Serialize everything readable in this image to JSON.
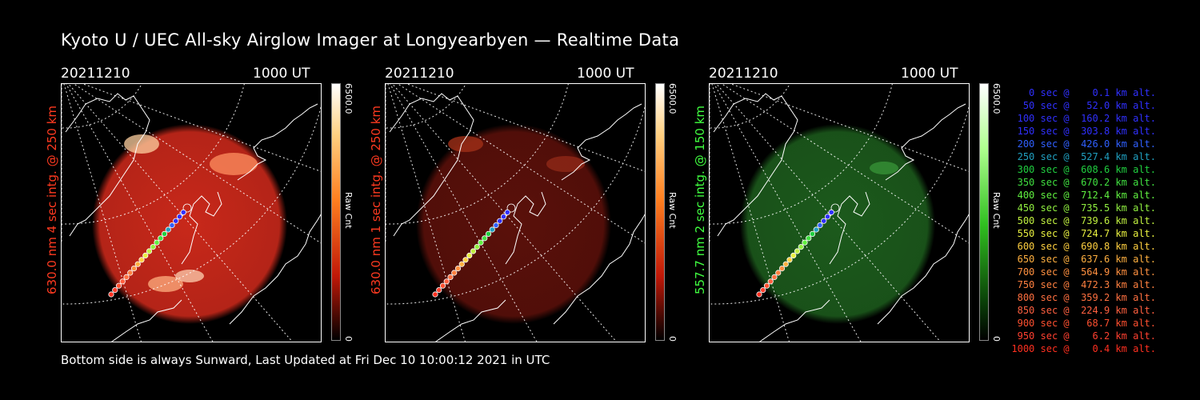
{
  "title": "Kyoto U / UEC All-sky Airglow Imager at Longyearbyen — Realtime Data",
  "panels": [
    {
      "date": "20211210",
      "time": "1000 UT",
      "ylabel": "630.0 nm 4 sec intg. @ 250 km",
      "ylabel_color": "#ff3a20",
      "scale_max": "6500.0",
      "scale_min": "0",
      "unit": "Raw Cnt",
      "image_tint": "#c8281a"
    },
    {
      "date": "20211210",
      "time": "1000 UT",
      "ylabel": "630.0 nm 1 sec intg. @ 250 km",
      "ylabel_color": "#ff3a20",
      "scale_max": "6500.0",
      "scale_min": "0",
      "unit": "Raw Cnt",
      "image_tint": "#5a100a"
    },
    {
      "date": "20211210",
      "time": "1000 UT",
      "ylabel": "557.7 nm 2 sec intg. @ 150 km",
      "ylabel_color": "#40ff40",
      "scale_max": "6500.0",
      "scale_min": "0",
      "unit": "Raw Cnt",
      "image_tint": "#1c5a1c"
    }
  ],
  "footer": "Bottom side is always Sunward, Last Updated at Fri Dec 10 10:00:12 2021 in UTC",
  "legend": [
    {
      "text": "   0 sec @    0.1 km alt.",
      "color": "#3030ff"
    },
    {
      "text": "  50 sec @   52.0 km alt.",
      "color": "#3030ff"
    },
    {
      "text": " 100 sec @  160.2 km alt.",
      "color": "#3030ff"
    },
    {
      "text": " 150 sec @  303.8 km alt.",
      "color": "#3030ff"
    },
    {
      "text": " 200 sec @  426.0 km alt.",
      "color": "#3060ff"
    },
    {
      "text": " 250 sec @  527.4 km alt.",
      "color": "#20a0c0"
    },
    {
      "text": " 300 sec @  608.6 km alt.",
      "color": "#20d040"
    },
    {
      "text": " 350 sec @  670.2 km alt.",
      "color": "#40e040"
    },
    {
      "text": " 400 sec @  712.4 km alt.",
      "color": "#60f040"
    },
    {
      "text": " 450 sec @  735.5 km alt.",
      "color": "#90f040"
    },
    {
      "text": " 500 sec @  739.6 km alt.",
      "color": "#c0f040"
    },
    {
      "text": " 550 sec @  724.7 km alt.",
      "color": "#e8f040"
    },
    {
      "text": " 600 sec @  690.8 km alt.",
      "color": "#ffd040"
    },
    {
      "text": " 650 sec @  637.6 km alt.",
      "color": "#ffb040"
    },
    {
      "text": " 700 sec @  564.9 km alt.",
      "color": "#ff9040"
    },
    {
      "text": " 750 sec @  472.3 km alt.",
      "color": "#ff8040"
    },
    {
      "text": " 800 sec @  359.2 km alt.",
      "color": "#ff7040"
    },
    {
      "text": " 850 sec @  224.9 km alt.",
      "color": "#ff6040"
    },
    {
      "text": " 900 sec @   68.7 km alt.",
      "color": "#ff5030"
    },
    {
      "text": " 950 sec @    6.2 km alt.",
      "color": "#ff4030"
    },
    {
      "text": "1000 sec @    0.4 km alt.",
      "color": "#ff3020"
    }
  ]
}
